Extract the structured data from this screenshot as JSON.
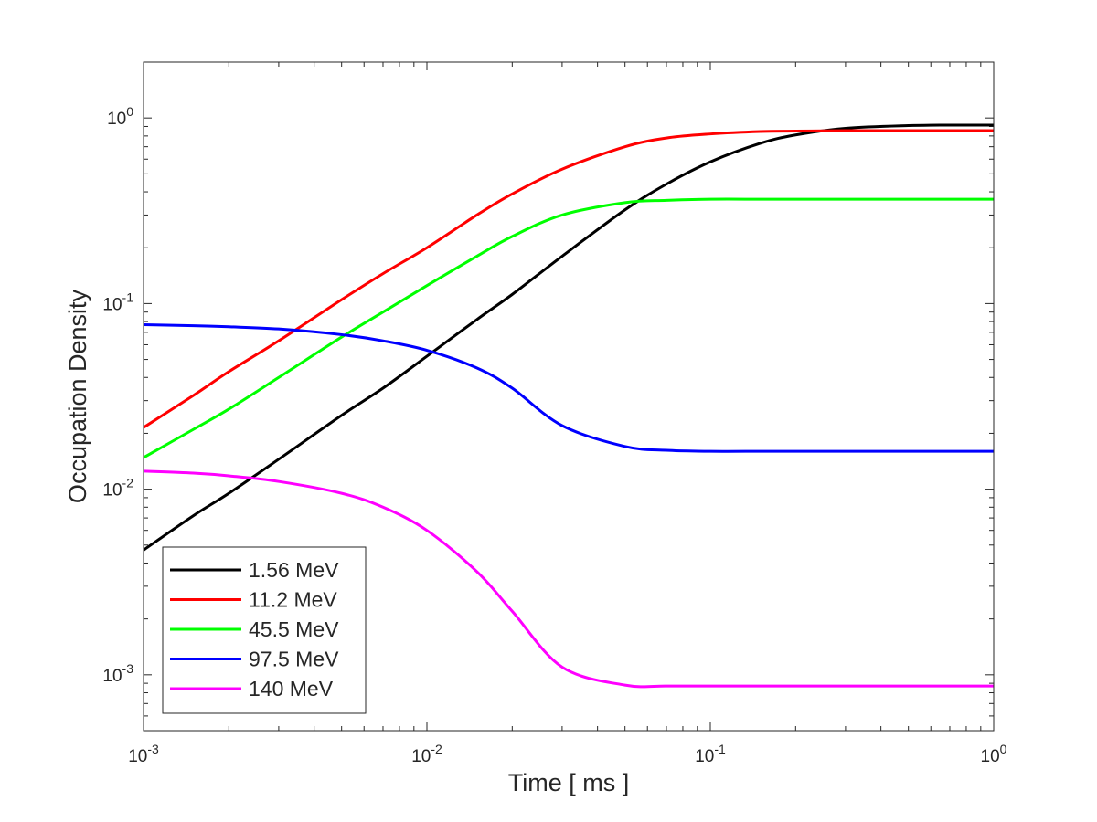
{
  "chart_data": {
    "type": "line",
    "xlabel": "Time [ ms ]",
    "ylabel": "Occupation Density",
    "xscale": "log",
    "yscale": "log",
    "xlim": [
      0.001,
      1
    ],
    "ylim": [
      0.0005,
      2
    ],
    "xticks": [
      {
        "value": 0.001,
        "base": "10",
        "exp": "-3"
      },
      {
        "value": 0.01,
        "base": "10",
        "exp": "-2"
      },
      {
        "value": 0.1,
        "base": "10",
        "exp": "-1"
      },
      {
        "value": 1,
        "base": "10",
        "exp": "0"
      }
    ],
    "yticks": [
      {
        "value": 0.001,
        "base": "10",
        "exp": "-3"
      },
      {
        "value": 0.01,
        "base": "10",
        "exp": "-2"
      },
      {
        "value": 0.1,
        "base": "10",
        "exp": "-1"
      },
      {
        "value": 1,
        "base": "10",
        "exp": "0"
      }
    ],
    "grid": false,
    "legend": "bottom-left",
    "series": [
      {
        "name": "1.56 MeV",
        "color": "#000000",
        "x": [
          0.001,
          0.0015,
          0.002,
          0.003,
          0.005,
          0.007,
          0.01,
          0.015,
          0.02,
          0.03,
          0.05,
          0.07,
          0.1,
          0.15,
          0.2,
          0.3,
          0.5,
          0.7,
          1
        ],
        "y": [
          0.0047,
          0.0072,
          0.0095,
          0.0145,
          0.025,
          0.035,
          0.052,
          0.082,
          0.112,
          0.18,
          0.32,
          0.44,
          0.58,
          0.73,
          0.81,
          0.88,
          0.91,
          0.915,
          0.915
        ]
      },
      {
        "name": "11.2 MeV",
        "color": "#ff0000",
        "x": [
          0.001,
          0.0015,
          0.002,
          0.003,
          0.005,
          0.007,
          0.01,
          0.015,
          0.02,
          0.03,
          0.05,
          0.07,
          0.1,
          0.15,
          0.2,
          0.3,
          0.5,
          0.7,
          1
        ],
        "y": [
          0.0215,
          0.032,
          0.043,
          0.063,
          0.105,
          0.145,
          0.2,
          0.3,
          0.39,
          0.53,
          0.7,
          0.78,
          0.82,
          0.845,
          0.85,
          0.855,
          0.855,
          0.855,
          0.855
        ]
      },
      {
        "name": "45.5 MeV",
        "color": "#00ff00",
        "x": [
          0.001,
          0.0015,
          0.002,
          0.003,
          0.005,
          0.007,
          0.01,
          0.015,
          0.02,
          0.03,
          0.05,
          0.07,
          0.1,
          0.15,
          0.2,
          0.3,
          0.5,
          0.7,
          1
        ],
        "y": [
          0.0148,
          0.021,
          0.027,
          0.04,
          0.066,
          0.09,
          0.125,
          0.18,
          0.23,
          0.3,
          0.35,
          0.36,
          0.365,
          0.365,
          0.365,
          0.365,
          0.365,
          0.365,
          0.365
        ]
      },
      {
        "name": "97.5 MeV",
        "color": "#0000ff",
        "x": [
          0.001,
          0.0015,
          0.002,
          0.003,
          0.005,
          0.007,
          0.01,
          0.015,
          0.02,
          0.03,
          0.05,
          0.07,
          0.1,
          0.15,
          0.2,
          0.3,
          0.5,
          0.7,
          1
        ],
        "y": [
          0.077,
          0.076,
          0.075,
          0.073,
          0.068,
          0.063,
          0.056,
          0.045,
          0.035,
          0.022,
          0.017,
          0.0162,
          0.016,
          0.016,
          0.016,
          0.016,
          0.016,
          0.016,
          0.016
        ]
      },
      {
        "name": "140 MeV",
        "color": "#ff00ff",
        "x": [
          0.001,
          0.0015,
          0.002,
          0.003,
          0.005,
          0.007,
          0.01,
          0.015,
          0.02,
          0.03,
          0.05,
          0.07,
          0.1,
          0.15,
          0.2,
          0.3,
          0.5,
          0.7,
          1
        ],
        "y": [
          0.0125,
          0.0122,
          0.0118,
          0.011,
          0.0095,
          0.008,
          0.006,
          0.0036,
          0.0022,
          0.0011,
          0.00088,
          0.00087,
          0.00087,
          0.00087,
          0.00087,
          0.00087,
          0.00087,
          0.00087,
          0.00087
        ]
      }
    ]
  }
}
